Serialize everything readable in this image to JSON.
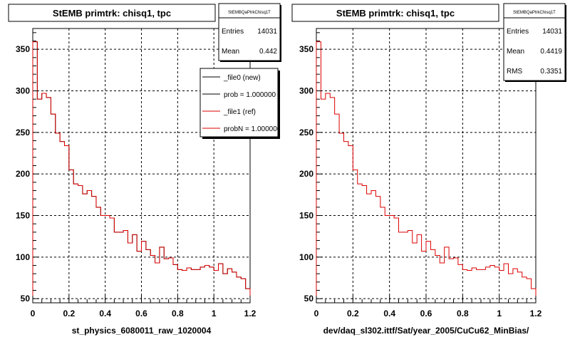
{
  "chart_data": [
    {
      "type": "step",
      "title": "StEMB primtrk: chisq1, tpc",
      "xlabel": "st_physics_6080011_raw_1020004",
      "xlim": [
        0,
        1.2
      ],
      "ylim": [
        45,
        375
      ],
      "x_ticks": [
        "0",
        "0.2",
        "0.4",
        "0.6",
        "0.8",
        "1",
        "1.2"
      ],
      "y_ticks": [
        "50",
        "100",
        "150",
        "200",
        "250",
        "300",
        "350"
      ],
      "grid": true,
      "stats": {
        "header": "StEMBQaPtrkChisq1T",
        "rows": [
          {
            "label": "Entries",
            "value": "14031"
          },
          {
            "label": "Mean",
            "value": "0.442"
          }
        ]
      },
      "legend": {
        "placement": "top-right",
        "entries": [
          {
            "label": "_file0 (new)",
            "color": "#000000"
          },
          {
            "label": "prob = 1.000000",
            "color": "#000000"
          },
          {
            "label": "_file1 (ref)",
            "color": "#dd0000"
          },
          {
            "label": "probN = 1.000000",
            "color": "#dd0000"
          }
        ]
      },
      "bin_width": 0.025,
      "series": [
        {
          "name": "_file0 (new)",
          "color": "#000000",
          "values": [
            359,
            290,
            297,
            292,
            272,
            249,
            239,
            234,
            205,
            188,
            186,
            176,
            180,
            173,
            160,
            150,
            150,
            147,
            130,
            130,
            132,
            117,
            127,
            107,
            119,
            109,
            102,
            93,
            112,
            98,
            99,
            91,
            85,
            84,
            87,
            85,
            85,
            88,
            90,
            88,
            84,
            92,
            80,
            86,
            82,
            76,
            74,
            62
          ]
        },
        {
          "name": "_file1 (ref)",
          "color": "#dd0000",
          "values": [
            359,
            290,
            297,
            292,
            272,
            249,
            239,
            234,
            205,
            188,
            186,
            176,
            180,
            173,
            160,
            150,
            150,
            147,
            130,
            130,
            132,
            117,
            127,
            107,
            119,
            109,
            102,
            93,
            112,
            98,
            99,
            91,
            85,
            84,
            87,
            85,
            85,
            88,
            90,
            88,
            84,
            92,
            80,
            86,
            82,
            76,
            74,
            62
          ]
        }
      ]
    },
    {
      "type": "step",
      "title": "StEMB primtrk: chisq1, tpc",
      "xlabel": "dev/daq_sl302.ittf/Sat/year_2005/CuCu62_MinBias/",
      "xlim": [
        0,
        1.2
      ],
      "ylim": [
        45,
        375
      ],
      "x_ticks": [
        "0",
        "0.2",
        "0.4",
        "0.6",
        "0.8",
        "1",
        "1.2"
      ],
      "y_ticks": [
        "50",
        "100",
        "150",
        "200",
        "250",
        "300",
        "350"
      ],
      "grid": true,
      "stats": {
        "header": "StEMBQaPtrkChisq1T",
        "rows": [
          {
            "label": "Entries",
            "value": "14031"
          },
          {
            "label": "Mean",
            "value": "0.4419"
          },
          {
            "label": "RMS",
            "value": "0.3351"
          }
        ]
      },
      "bin_width": 0.025,
      "series": [
        {
          "name": "",
          "color": "#dd0000",
          "values": [
            359,
            290,
            297,
            292,
            272,
            249,
            239,
            234,
            205,
            188,
            186,
            176,
            180,
            173,
            160,
            150,
            150,
            147,
            130,
            130,
            132,
            117,
            127,
            107,
            119,
            109,
            102,
            93,
            112,
            98,
            99,
            91,
            85,
            84,
            87,
            85,
            85,
            88,
            90,
            88,
            84,
            92,
            80,
            86,
            82,
            76,
            74,
            62
          ]
        }
      ]
    }
  ]
}
